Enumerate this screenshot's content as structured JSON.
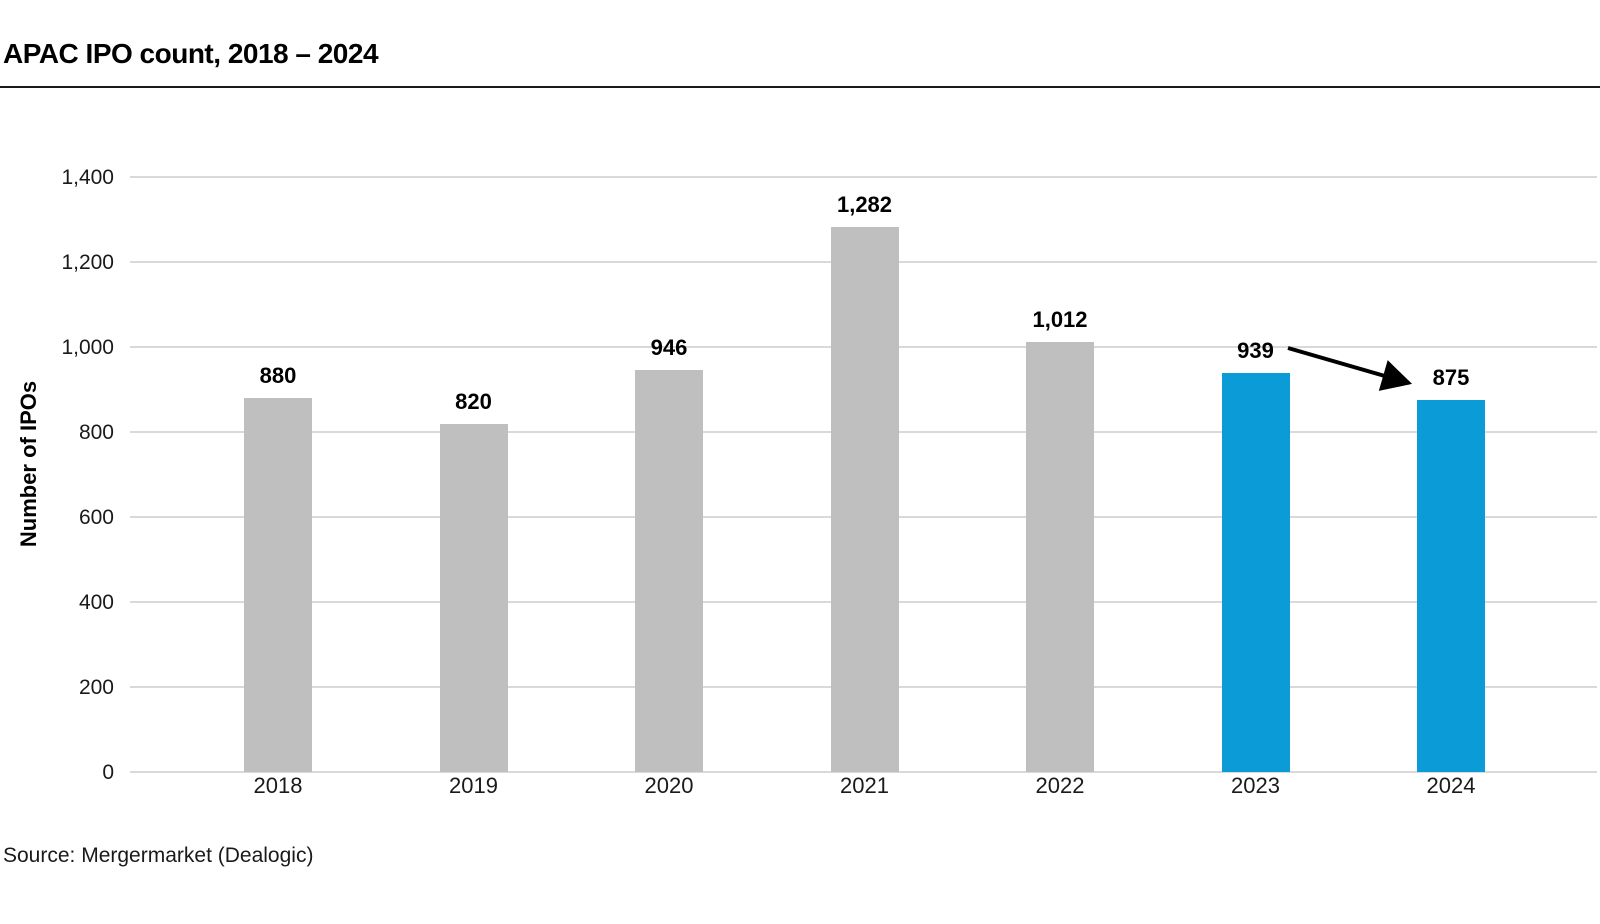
{
  "header": {
    "title": "APAC IPO count, 2018 – 2024"
  },
  "chart_data": {
    "type": "bar",
    "title": "APAC IPO count, 2018 – 2024",
    "categories": [
      "2018",
      "2019",
      "2020",
      "2021",
      "2022",
      "2023",
      "2024"
    ],
    "values": [
      880,
      820,
      946,
      1282,
      1012,
      939,
      875
    ],
    "value_labels": [
      "880",
      "820",
      "946",
      "1,282",
      "1,012",
      "939",
      "875"
    ],
    "xlabel": "",
    "ylabel": "Number of IPOs",
    "ylim": [
      0,
      1400
    ],
    "ytick_step": 200,
    "ytick_labels": [
      "0",
      "200",
      "400",
      "600",
      "800",
      "1,000",
      "1,200",
      "1,400"
    ],
    "grid": "horizontal-on",
    "legend": "none",
    "base_color": "#bfbfbf",
    "highlight_color": "#0b9cd8",
    "bar_colors": [
      "#bfbfbf",
      "#bfbfbf",
      "#bfbfbf",
      "#bfbfbf",
      "#bfbfbf",
      "#0b9cd8",
      "#0b9cd8"
    ],
    "annotation": {
      "type": "arrow",
      "from_category": "2023",
      "from_value": "939",
      "to_category": "2024",
      "to_value": "875",
      "color": "#000000",
      "meaning": "decline from 939 to 875"
    }
  },
  "footer": {
    "source": "Source: Mergermarket (Dealogic)"
  }
}
